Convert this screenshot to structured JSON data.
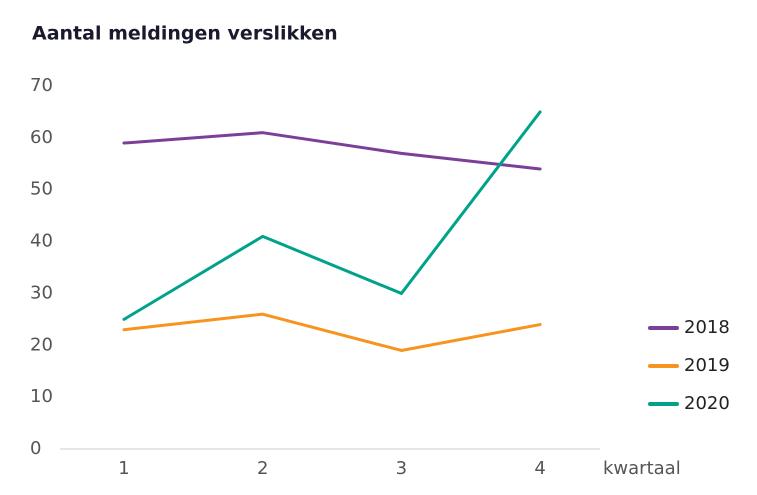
{
  "chart_data": {
    "type": "line",
    "title": "Aantal meldingen verslikken",
    "x_label": "kwartaal",
    "categories": [
      "1",
      "2",
      "3",
      "4"
    ],
    "series": [
      {
        "name": "2018",
        "color": "#7b3f98",
        "values": [
          59,
          61,
          57,
          54
        ]
      },
      {
        "name": "2019",
        "color": "#f7931e",
        "values": [
          23,
          26,
          19,
          24
        ]
      },
      {
        "name": "2020",
        "color": "#00a38a",
        "values": [
          25,
          41,
          30,
          65
        ]
      }
    ],
    "ylim": [
      0,
      70
    ],
    "yticks": [
      0,
      10,
      20,
      30,
      40,
      50,
      60,
      70
    ],
    "grid": false,
    "legend": "right"
  }
}
